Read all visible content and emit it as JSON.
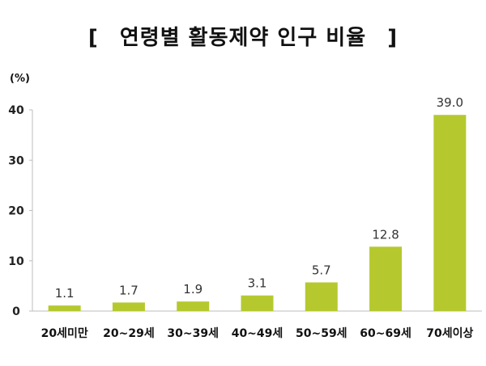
{
  "chart_data": {
    "type": "bar",
    "title": "연령별 활동제약 인구 비율",
    "title_brackets": [
      "[",
      "]"
    ],
    "ylabel": "(%)",
    "xlabel": "",
    "categories": [
      "20세미만",
      "20~29세",
      "30~39세",
      "40~49세",
      "50~59세",
      "60~69세",
      "70세이상"
    ],
    "values": [
      1.1,
      1.7,
      1.9,
      3.1,
      5.7,
      12.8,
      39.0
    ],
    "value_labels": [
      "1.1",
      "1.7",
      "1.9",
      "3.1",
      "5.7",
      "12.8",
      "39.0"
    ],
    "yticks": [
      "0",
      "10",
      "20",
      "30",
      "40"
    ],
    "ylim": [
      0,
      40
    ],
    "grid": false,
    "legend": "none",
    "bar_color": "#b5c92f"
  }
}
